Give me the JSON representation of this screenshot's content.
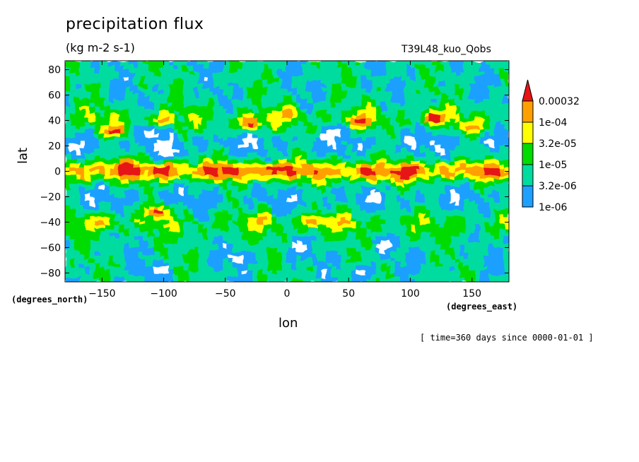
{
  "chart_data": {
    "type": "heatmap",
    "title": "precipitation flux",
    "units": "(kg m-2 s-1)",
    "run_label": "T39L48_kuo_Qobs",
    "xlabel": "lon",
    "ylabel": "lat",
    "x_units": "(degrees_east)",
    "y_units": "(degrees_north)",
    "footer": "[ time=360 days since 0000-01-01 ]",
    "xlim": [
      -180,
      180
    ],
    "ylim": [
      -87,
      87
    ],
    "x_ticks": [
      -150,
      -100,
      -50,
      0,
      50,
      100,
      150
    ],
    "y_ticks": [
      80,
      60,
      40,
      20,
      0,
      -20,
      -40,
      -60,
      -80
    ],
    "x_tick_labels": [
      "−150",
      "−100",
      "−50",
      "0",
      "50",
      "100",
      "150"
    ],
    "y_tick_labels": [
      "80",
      "60",
      "40",
      "20",
      "0",
      "−20",
      "−40",
      "−60",
      "−80"
    ],
    "levels": [
      "1e-06",
      "3.2e-06",
      "1e-05",
      "3.2e-05",
      "1e-04",
      "0.00032"
    ],
    "level_colors": [
      "#ffffff",
      "#1ea0ff",
      "#00dca0",
      "#00dc00",
      "#ffff00",
      "#ffa000",
      "#e61414"
    ],
    "features": [
      {
        "lon": -130,
        "lat": 3,
        "level": 6
      },
      {
        "lon": -100,
        "lat": 0,
        "level": 6
      },
      {
        "lon": -48,
        "lat": 0,
        "level": 6
      },
      {
        "lon": -10,
        "lat": 1,
        "level": 6
      },
      {
        "lon": 65,
        "lat": -1,
        "level": 6
      },
      {
        "lon": 95,
        "lat": -2,
        "level": 6
      },
      {
        "lon": -105,
        "lat": -32,
        "level": 6
      },
      {
        "lon": -140,
        "lat": 32,
        "level": 6
      },
      {
        "lon": 60,
        "lat": 40,
        "level": 6
      },
      {
        "lon": -30,
        "lat": 38,
        "level": 6
      },
      {
        "lon": 120,
        "lat": 42,
        "level": 6
      },
      {
        "lon": 45,
        "lat": -40,
        "level": 5
      },
      {
        "lon": 20,
        "lat": -40,
        "level": 5
      },
      {
        "lon": -20,
        "lat": -38,
        "level": 5
      },
      {
        "lon": -150,
        "lat": -40,
        "level": 5
      },
      {
        "lon": -100,
        "lat": 40,
        "level": 5
      },
      {
        "lon": 0,
        "lat": 45,
        "level": 5
      },
      {
        "lon": 150,
        "lat": 35,
        "level": 5
      },
      {
        "lon": -105,
        "lat": -78,
        "level": 0
      },
      {
        "lon": -40,
        "lat": -68,
        "level": 0
      },
      {
        "lon": 10,
        "lat": -60,
        "level": 0
      },
      {
        "lon": 80,
        "lat": -58,
        "level": 0
      },
      {
        "lon": -95,
        "lat": 15,
        "level": 0
      },
      {
        "lon": -110,
        "lat": 30,
        "level": 0
      },
      {
        "lon": 40,
        "lat": 30,
        "level": 0
      },
      {
        "lon": 60,
        "lat": -80,
        "level": 0
      }
    ]
  }
}
